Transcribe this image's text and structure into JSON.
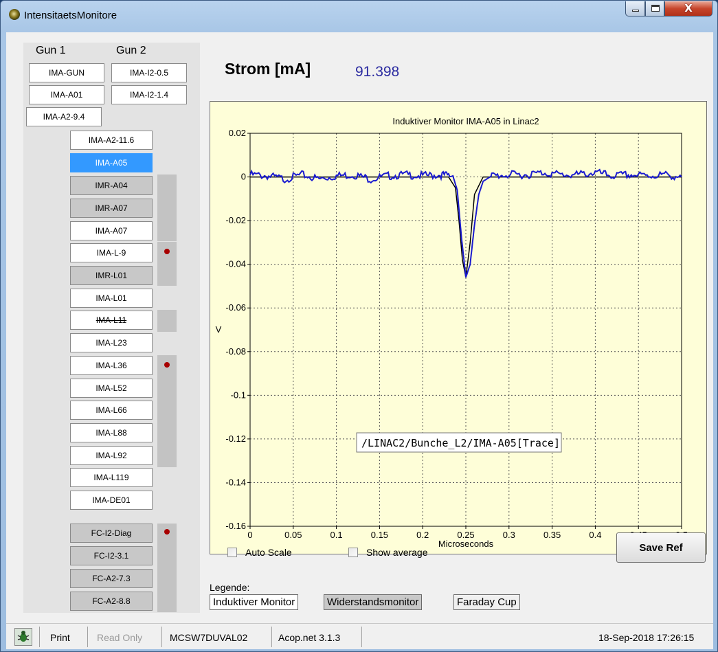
{
  "window": {
    "title": "IntensitaetsMonitore",
    "close_glyph": "X"
  },
  "left_panel": {
    "headers": [
      "Gun 1",
      "Gun 2"
    ],
    "buttons": [
      {
        "label": "IMA-GUN",
        "style": "normal"
      },
      {
        "label": "IMA-I2-0.5",
        "style": "normal"
      },
      {
        "label": "IMA-A01",
        "style": "normal"
      },
      {
        "label": "IMA-I2-1.4",
        "style": "normal"
      },
      {
        "label": "IMA-A2-9.4",
        "style": "normal"
      },
      {
        "label": "IMA-A2-11.6",
        "style": "normal"
      },
      {
        "label": "IMA-A05",
        "style": "selected"
      },
      {
        "label": "IMR-A04",
        "style": "dark"
      },
      {
        "label": "IMR-A07",
        "style": "dark"
      },
      {
        "label": "IMA-A07",
        "style": "normal"
      },
      {
        "label": "IMA-L-9",
        "style": "normal"
      },
      {
        "label": "IMR-L01",
        "style": "dark"
      },
      {
        "label": "IMA-L01",
        "style": "normal"
      },
      {
        "label": "IMA-L11",
        "style": "strikethrough"
      },
      {
        "label": "IMA-L23",
        "style": "normal"
      },
      {
        "label": "IMA-L36",
        "style": "normal"
      },
      {
        "label": "IMA-L52",
        "style": "normal"
      },
      {
        "label": "IMA-L66",
        "style": "normal"
      },
      {
        "label": "IMA-L88",
        "style": "normal"
      },
      {
        "label": "IMA-L92",
        "style": "normal"
      },
      {
        "label": "IMA-L119",
        "style": "normal"
      },
      {
        "label": "IMA-DE01",
        "style": "normal"
      },
      {
        "label": "FC-I2-Diag",
        "style": "dark"
      },
      {
        "label": "FC-I2-3.1",
        "style": "dark"
      },
      {
        "label": "FC-A2-7.3",
        "style": "dark"
      },
      {
        "label": "FC-A2-8.8",
        "style": "dark"
      }
    ],
    "status_dot_color": "#a80000",
    "selected_color": "#3399ff"
  },
  "strom": {
    "label": "Strom [mA]",
    "value": "91.398"
  },
  "chart_data": {
    "type": "line",
    "title": "Induktiver Monitor IMA-A05 in Linac2",
    "xlabel": "Microseconds",
    "ylabel": "V",
    "xlim": [
      0,
      0.5
    ],
    "ylim": [
      -0.16,
      0.02
    ],
    "xticks": [
      "0",
      "0.05",
      "0.1",
      "0.15",
      "0.2",
      "0.25",
      "0.3",
      "0.35",
      "0.4",
      "0.45",
      "0.5"
    ],
    "yticks": [
      "0.02",
      "0",
      "-0.02",
      "-0.04",
      "-0.06",
      "-0.08",
      "-0.1",
      "-0.12",
      "-0.14",
      "-0.16"
    ],
    "grid": true,
    "background": "#fefed8",
    "series": [
      {
        "color": "#000000",
        "kind": "reference",
        "x": [
          0,
          0.23,
          0.238,
          0.242,
          0.246,
          0.25,
          0.255,
          0.26,
          0.27,
          0.5
        ],
        "values": [
          0,
          0,
          -0.005,
          -0.02,
          -0.038,
          -0.046,
          -0.03,
          -0.008,
          0,
          0
        ]
      },
      {
        "color": "#1a1ad0",
        "kind": "trace",
        "x": [
          0,
          0.02,
          0.04,
          0.06,
          0.08,
          0.1,
          0.12,
          0.14,
          0.16,
          0.18,
          0.2,
          0.22,
          0.235,
          0.24,
          0.245,
          0.25,
          0.255,
          0.26,
          0.265,
          0.27,
          0.28,
          0.3,
          0.32,
          0.34,
          0.36,
          0.38,
          0.4,
          0.42,
          0.44,
          0.46,
          0.48,
          0.5
        ],
        "values": [
          0.001,
          0.0005,
          -0.001,
          0.001,
          -0.001,
          0.0005,
          0.001,
          -0.001,
          0.0005,
          0.001,
          0.0005,
          0.001,
          0.0005,
          -0.006,
          -0.028,
          -0.046,
          -0.04,
          -0.022,
          -0.008,
          -0.002,
          0.0005,
          0.001,
          0.001,
          0.002,
          0.001,
          0.001,
          0.002,
          0.0005,
          0.001,
          0.0005,
          0.001,
          0
        ]
      }
    ],
    "tooltip": "/LINAC2/Bunche_L2/IMA-A05[Trace]"
  },
  "controls": {
    "auto_scale": {
      "label": "Auto Scale",
      "checked": false
    },
    "show_average": {
      "label": "Show average",
      "checked": false
    },
    "save_ref": "Save Ref"
  },
  "legend": {
    "title": "Legende:",
    "items": [
      {
        "label": "Induktiver Monitor",
        "color": "#ffffff"
      },
      {
        "label": "Widerstandsmonitor",
        "color": "#c8c8c8"
      },
      {
        "label": "Faraday Cup",
        "color": "#f0f0f0"
      }
    ]
  },
  "statusbar": {
    "icon": "bug-icon",
    "print": "Print",
    "read_only": "Read Only",
    "host": "MCSW7DUVAL02",
    "version": "Acop.net 3.1.3",
    "datetime": "18-Sep-2018 17:26:15"
  }
}
